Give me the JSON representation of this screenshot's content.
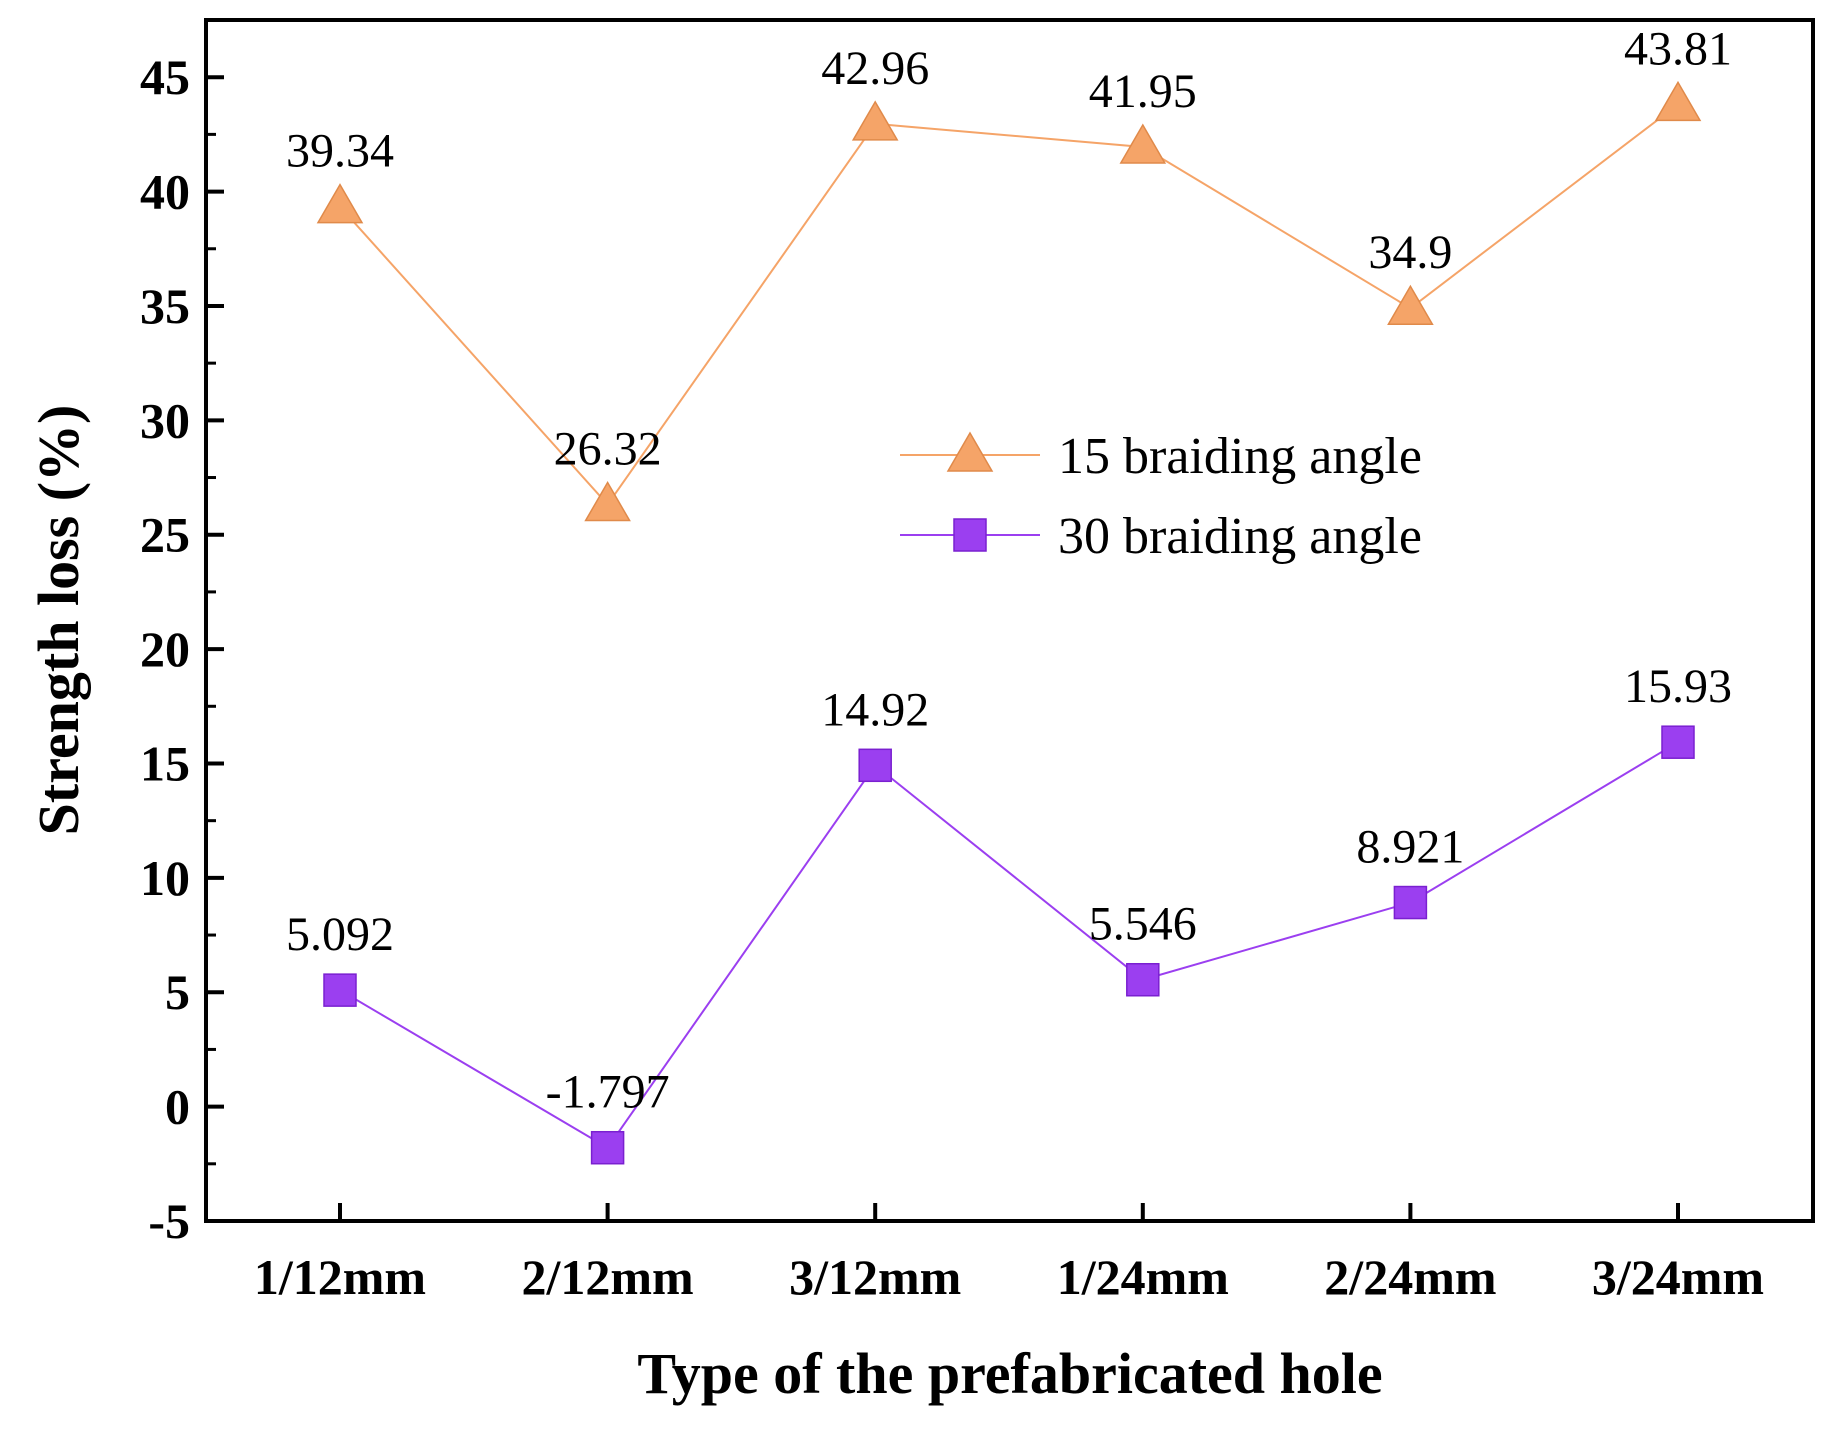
{
  "chart_data": {
    "type": "line",
    "title": "",
    "xlabel": "Type of the prefabricated hole",
    "ylabel": "Strength loss (%)",
    "categories": [
      "1/12mm",
      "2/12mm",
      "3/12mm",
      "1/24mm",
      "2/24mm",
      "3/24mm"
    ],
    "ylim": [
      -5,
      47.5
    ],
    "yticks": [
      -5,
      0,
      5,
      10,
      15,
      20,
      25,
      30,
      35,
      40,
      45
    ],
    "yminor_step": 2.5,
    "legend_position": "center-right",
    "series": [
      {
        "name": "15 braiding angle",
        "marker": "triangle",
        "color": "#f5a468",
        "values": [
          39.34,
          26.32,
          42.96,
          41.95,
          34.9,
          43.81
        ],
        "labels": [
          "39.34",
          "26.32",
          "42.96",
          "41.95",
          "34.9",
          "43.81"
        ]
      },
      {
        "name": "30 braiding angle",
        "marker": "square",
        "color": "#9b3ff0",
        "values": [
          5.092,
          -1.797,
          14.92,
          5.546,
          8.921,
          15.93
        ],
        "labels": [
          "5.092",
          "-1.797",
          "14.92",
          "5.546",
          "8.921",
          "15.93"
        ]
      }
    ]
  }
}
